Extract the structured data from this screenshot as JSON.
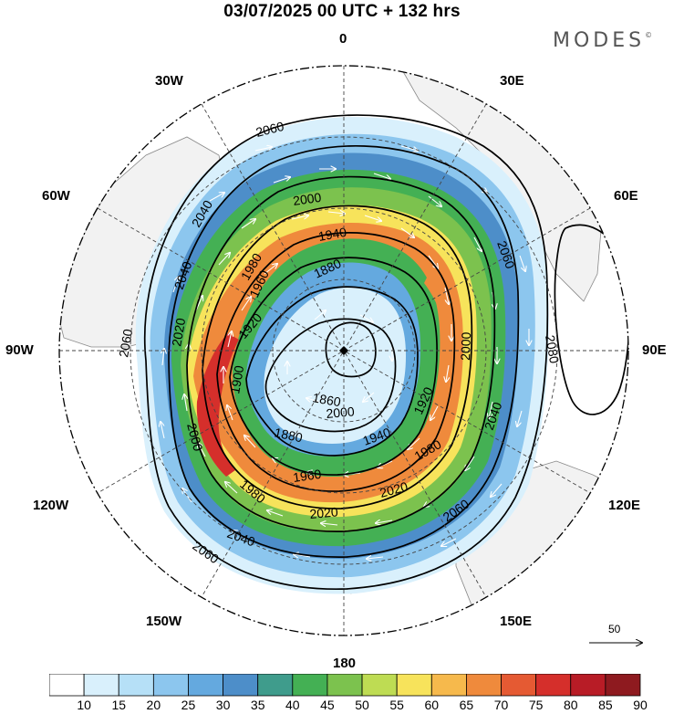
{
  "title": "03/07/2025  00 UTC  + 132 hrs",
  "brand": "MODES",
  "brand_mark": "©",
  "longitude_labels": {
    "lon_0": "0",
    "lon_30e": "30E",
    "lon_60e": "60E",
    "lon_90e": "90E",
    "lon_120e": "120E",
    "lon_150e": "150E",
    "lon_180": "180",
    "lon_150w": "150W",
    "lon_120w": "120W",
    "lon_90w": "90W",
    "lon_60w": "60W",
    "lon_30w": "30W"
  },
  "contour_labels": [
    "2060",
    "2060",
    "2040",
    "2040",
    "2020",
    "2000",
    "1980",
    "1960",
    "1940",
    "1920",
    "1900",
    "1880",
    "1860",
    "1880",
    "2000",
    "1980",
    "1960",
    "1940",
    "1920",
    "1980",
    "2000",
    "2020",
    "2040",
    "2060",
    "2040",
    "2060",
    "2080",
    "2060",
    "2000",
    "2020"
  ],
  "colorbar": {
    "values": [
      "10",
      "15",
      "20",
      "25",
      "30",
      "35",
      "40",
      "45",
      "50",
      "55",
      "60",
      "65",
      "70",
      "75",
      "80",
      "85",
      "90"
    ],
    "colors": [
      "#ffffff",
      "#d9f0fc",
      "#b6e0f7",
      "#8cc6ee",
      "#64a9df",
      "#4d8ec9",
      "#3f9c8c",
      "#44b054",
      "#7cc24e",
      "#bedc53",
      "#f7e35b",
      "#f6b94c",
      "#ef8a3c",
      "#e55a33",
      "#d52f2b",
      "#b81c26",
      "#8e1a1f"
    ]
  },
  "vector_scale_label": "50",
  "colors": {
    "land": "#f2f2f2",
    "coast": "#888888",
    "grid": "#444444"
  }
}
